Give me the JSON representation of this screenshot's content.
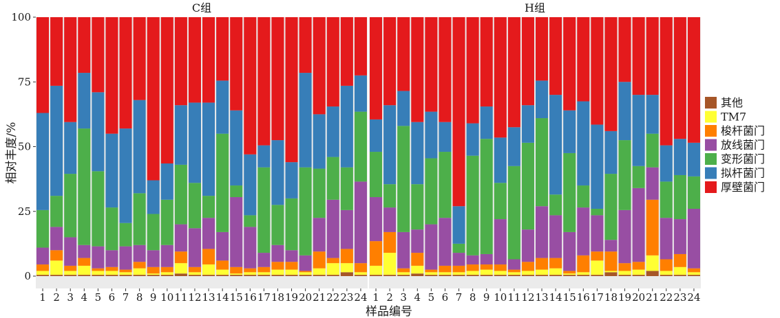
{
  "chart_data": {
    "type": "bar",
    "stacked": true,
    "xlabel": "样品编号",
    "ylabel": "相对丰度/%",
    "ylim": [
      0,
      100
    ],
    "yticks": [
      0,
      25,
      50,
      75,
      100
    ],
    "categories": [
      "1",
      "2",
      "3",
      "4",
      "5",
      "6",
      "7",
      "8",
      "9",
      "10",
      "11",
      "12",
      "13",
      "14",
      "15",
      "16",
      "17",
      "18",
      "19",
      "20",
      "21",
      "22",
      "23",
      "24"
    ],
    "legend_position": "right",
    "grid": false,
    "series": [
      {
        "name": "其他",
        "color": "#A65628"
      },
      {
        "name": "TM7",
        "color": "#FFFF33"
      },
      {
        "name": "梭杆菌门",
        "color": "#FF7F00"
      },
      {
        "name": "放线菌门",
        "color": "#984EA3"
      },
      {
        "name": "变形菌门",
        "color": "#4DAF4A"
      },
      {
        "name": "拟杆菌门",
        "color": "#377EB8"
      },
      {
        "name": "厚壁菌门",
        "color": "#E41A1C"
      }
    ],
    "panels": [
      {
        "title": "C组",
        "values": [
          [
            0.5,
            1.5,
            2.5,
            6.5,
            14.5,
            37.5,
            37.0
          ],
          [
            0.5,
            5.5,
            4.0,
            9.0,
            12.0,
            42.5,
            26.5
          ],
          [
            0.5,
            1.5,
            2.0,
            11.0,
            24.5,
            20.0,
            40.5
          ],
          [
            0.5,
            3.5,
            3.0,
            5.0,
            45.0,
            21.5,
            21.5
          ],
          [
            0.5,
            1.5,
            1.0,
            8.5,
            29.0,
            30.5,
            29.0
          ],
          [
            0.5,
            1.5,
            1.5,
            6.5,
            16.5,
            28.5,
            45.0
          ],
          [
            0.5,
            1.0,
            1.0,
            9.0,
            9.0,
            36.5,
            43.0
          ],
          [
            0.5,
            2.5,
            2.5,
            6.5,
            20.0,
            36.0,
            32.0
          ],
          [
            0.5,
            0.5,
            2.5,
            6.5,
            14.0,
            13.0,
            63.0
          ],
          [
            0.5,
            1.0,
            2.0,
            8.5,
            17.5,
            14.0,
            56.5
          ],
          [
            1.0,
            4.0,
            4.5,
            10.5,
            23.0,
            23.0,
            34.0
          ],
          [
            0.5,
            1.0,
            2.0,
            15.0,
            17.5,
            31.0,
            33.0
          ],
          [
            0.5,
            4.0,
            6.0,
            12.0,
            8.5,
            36.0,
            33.0
          ],
          [
            0.5,
            2.0,
            3.5,
            11.0,
            38.0,
            20.5,
            24.5
          ],
          [
            0.5,
            0.5,
            2.5,
            27.0,
            4.5,
            29.0,
            36.0
          ],
          [
            0.5,
            1.0,
            1.5,
            16.0,
            4.5,
            23.5,
            53.0
          ],
          [
            0.5,
            1.0,
            2.0,
            5.5,
            33.0,
            8.5,
            49.5
          ],
          [
            0.5,
            2.0,
            3.0,
            6.5,
            15.5,
            25.0,
            47.5
          ],
          [
            0.5,
            2.0,
            3.0,
            4.5,
            20.0,
            14.0,
            56.0
          ],
          [
            0.5,
            1.0,
            0.5,
            6.0,
            34.0,
            36.5,
            21.5
          ],
          [
            0.5,
            2.5,
            6.5,
            13.0,
            19.0,
            21.0,
            37.5
          ],
          [
            0.5,
            4.5,
            2.0,
            22.5,
            16.5,
            19.5,
            34.5
          ],
          [
            1.5,
            3.5,
            5.5,
            15.0,
            16.5,
            31.5,
            26.5
          ],
          [
            0.5,
            1.0,
            3.5,
            31.5,
            27.0,
            14.0,
            22.5
          ]
        ]
      },
      {
        "title": "H组",
        "values": [
          [
            0.5,
            3.5,
            9.5,
            17.0,
            17.5,
            12.5,
            39.5
          ],
          [
            0.5,
            8.5,
            8.0,
            9.5,
            9.0,
            30.5,
            34.0
          ],
          [
            0.5,
            1.0,
            1.5,
            14.0,
            41.0,
            13.5,
            28.5
          ],
          [
            1.0,
            3.0,
            5.0,
            9.0,
            17.5,
            24.0,
            40.5
          ],
          [
            0.5,
            1.0,
            1.0,
            17.5,
            25.5,
            18.0,
            36.5
          ],
          [
            0.5,
            1.0,
            2.5,
            18.5,
            25.5,
            11.5,
            40.5
          ],
          [
            0.5,
            1.0,
            2.5,
            5.0,
            3.5,
            14.5,
            73.0
          ],
          [
            0.5,
            1.5,
            2.5,
            3.5,
            38.5,
            12.5,
            41.0
          ],
          [
            0.5,
            2.0,
            2.0,
            4.0,
            44.5,
            12.5,
            34.5
          ],
          [
            0.5,
            1.5,
            2.5,
            17.5,
            14.0,
            17.5,
            46.5
          ],
          [
            0.5,
            1.0,
            1.0,
            4.0,
            36.0,
            15.0,
            42.5
          ],
          [
            0.5,
            1.5,
            3.5,
            12.5,
            33.5,
            14.5,
            34.0
          ],
          [
            0.5,
            2.0,
            4.5,
            20.0,
            34.0,
            14.5,
            24.5
          ],
          [
            0.5,
            2.5,
            4.0,
            16.5,
            8.0,
            38.5,
            30.0
          ],
          [
            0.5,
            0.5,
            1.0,
            15.0,
            30.5,
            16.5,
            36.0
          ],
          [
            0.5,
            1.0,
            6.5,
            18.5,
            8.5,
            32.5,
            32.5
          ],
          [
            0.5,
            5.5,
            3.5,
            14.0,
            2.5,
            32.5,
            41.5
          ],
          [
            1.5,
            0.5,
            7.5,
            4.5,
            25.5,
            16.5,
            44.0
          ],
          [
            0.5,
            1.5,
            3.0,
            20.5,
            27.0,
            22.5,
            25.0
          ],
          [
            0.5,
            2.0,
            3.0,
            28.5,
            8.5,
            27.5,
            30.0
          ],
          [
            2.0,
            6.0,
            21.5,
            12.5,
            13.0,
            15.0,
            30.0
          ],
          [
            0.5,
            1.5,
            4.5,
            16.0,
            14.0,
            14.0,
            49.5
          ],
          [
            0.5,
            3.0,
            5.0,
            13.5,
            17.0,
            14.0,
            47.0
          ],
          [
            0.5,
            1.0,
            1.5,
            23.0,
            12.5,
            13.0,
            48.5
          ]
        ]
      }
    ]
  }
}
